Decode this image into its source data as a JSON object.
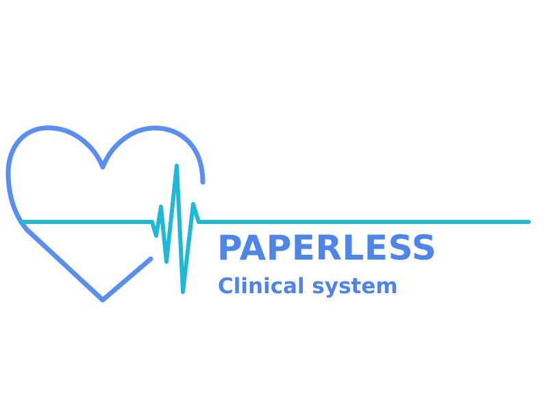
{
  "logo": {
    "title": "PAPERLESS",
    "subtitle": "Clinical system",
    "icon": "heart-heartbeat-icon"
  },
  "colors": {
    "heart_outline": "#5a8ef0",
    "heartbeat_line": "#1fb8d6",
    "text": "#4f85e6",
    "background": "#ffffff"
  }
}
